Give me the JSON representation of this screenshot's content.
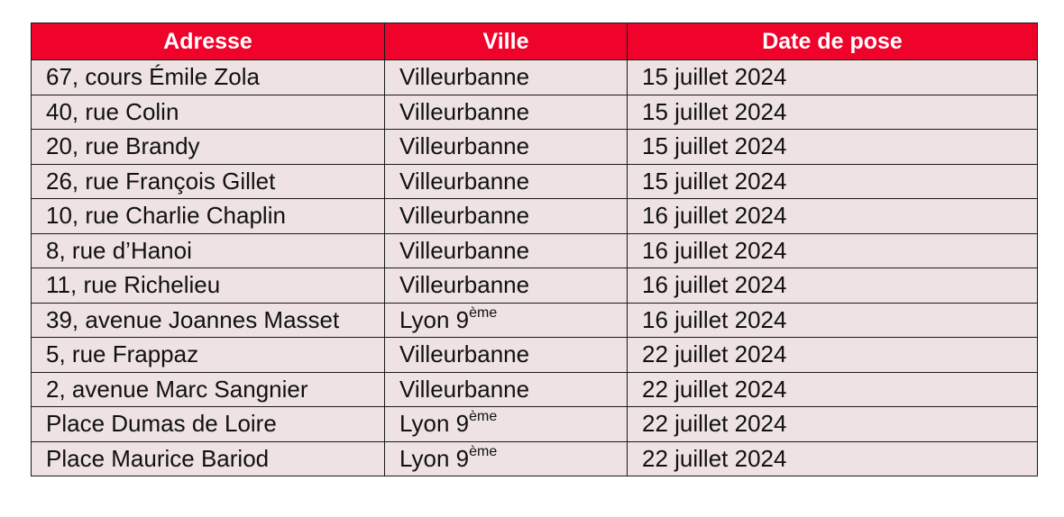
{
  "table": {
    "headers": {
      "address": "Adresse",
      "city": "Ville",
      "date": "Date de pose"
    },
    "rows": [
      {
        "address": "67, cours Émile Zola",
        "city": "Villeurbanne",
        "city_sup": "",
        "date": "15 juillet 2024"
      },
      {
        "address": "40, rue Colin",
        "city": "Villeurbanne",
        "city_sup": "",
        "date": "15 juillet 2024"
      },
      {
        "address": "20, rue Brandy",
        "city": "Villeurbanne",
        "city_sup": "",
        "date": "15 juillet 2024"
      },
      {
        "address": "26, rue François Gillet",
        "city": "Villeurbanne",
        "city_sup": "",
        "date": "15 juillet 2024"
      },
      {
        "address": "10, rue Charlie Chaplin",
        "city": "Villeurbanne",
        "city_sup": "",
        "date": "16 juillet 2024"
      },
      {
        "address": "8, rue d’Hanoi",
        "city": "Villeurbanne",
        "city_sup": "",
        "date": "16 juillet 2024"
      },
      {
        "address": "11, rue Richelieu",
        "city": "Villeurbanne",
        "city_sup": "",
        "date": "16 juillet 2024"
      },
      {
        "address": "39, avenue Joannes Masset",
        "city": "Lyon 9",
        "city_sup": "ème",
        "date": "16 juillet 2024"
      },
      {
        "address": "5, rue Frappaz",
        "city": "Villeurbanne",
        "city_sup": "",
        "date": "22 juillet 2024"
      },
      {
        "address": "2, avenue Marc Sangnier",
        "city": "Villeurbanne",
        "city_sup": "",
        "date": "22 juillet 2024"
      },
      {
        "address": "Place Dumas de Loire",
        "city": "Lyon 9",
        "city_sup": "ème",
        "date": "22 juillet 2024"
      },
      {
        "address": "Place Maurice Bariod",
        "city": "Lyon 9",
        "city_sup": "ème",
        "date": "22 juillet 2024"
      }
    ]
  },
  "colors": {
    "header_bg": "#f0032a",
    "header_text": "#ffffff",
    "row_bg": "#eee2e2",
    "border": "#1a1a1a"
  }
}
